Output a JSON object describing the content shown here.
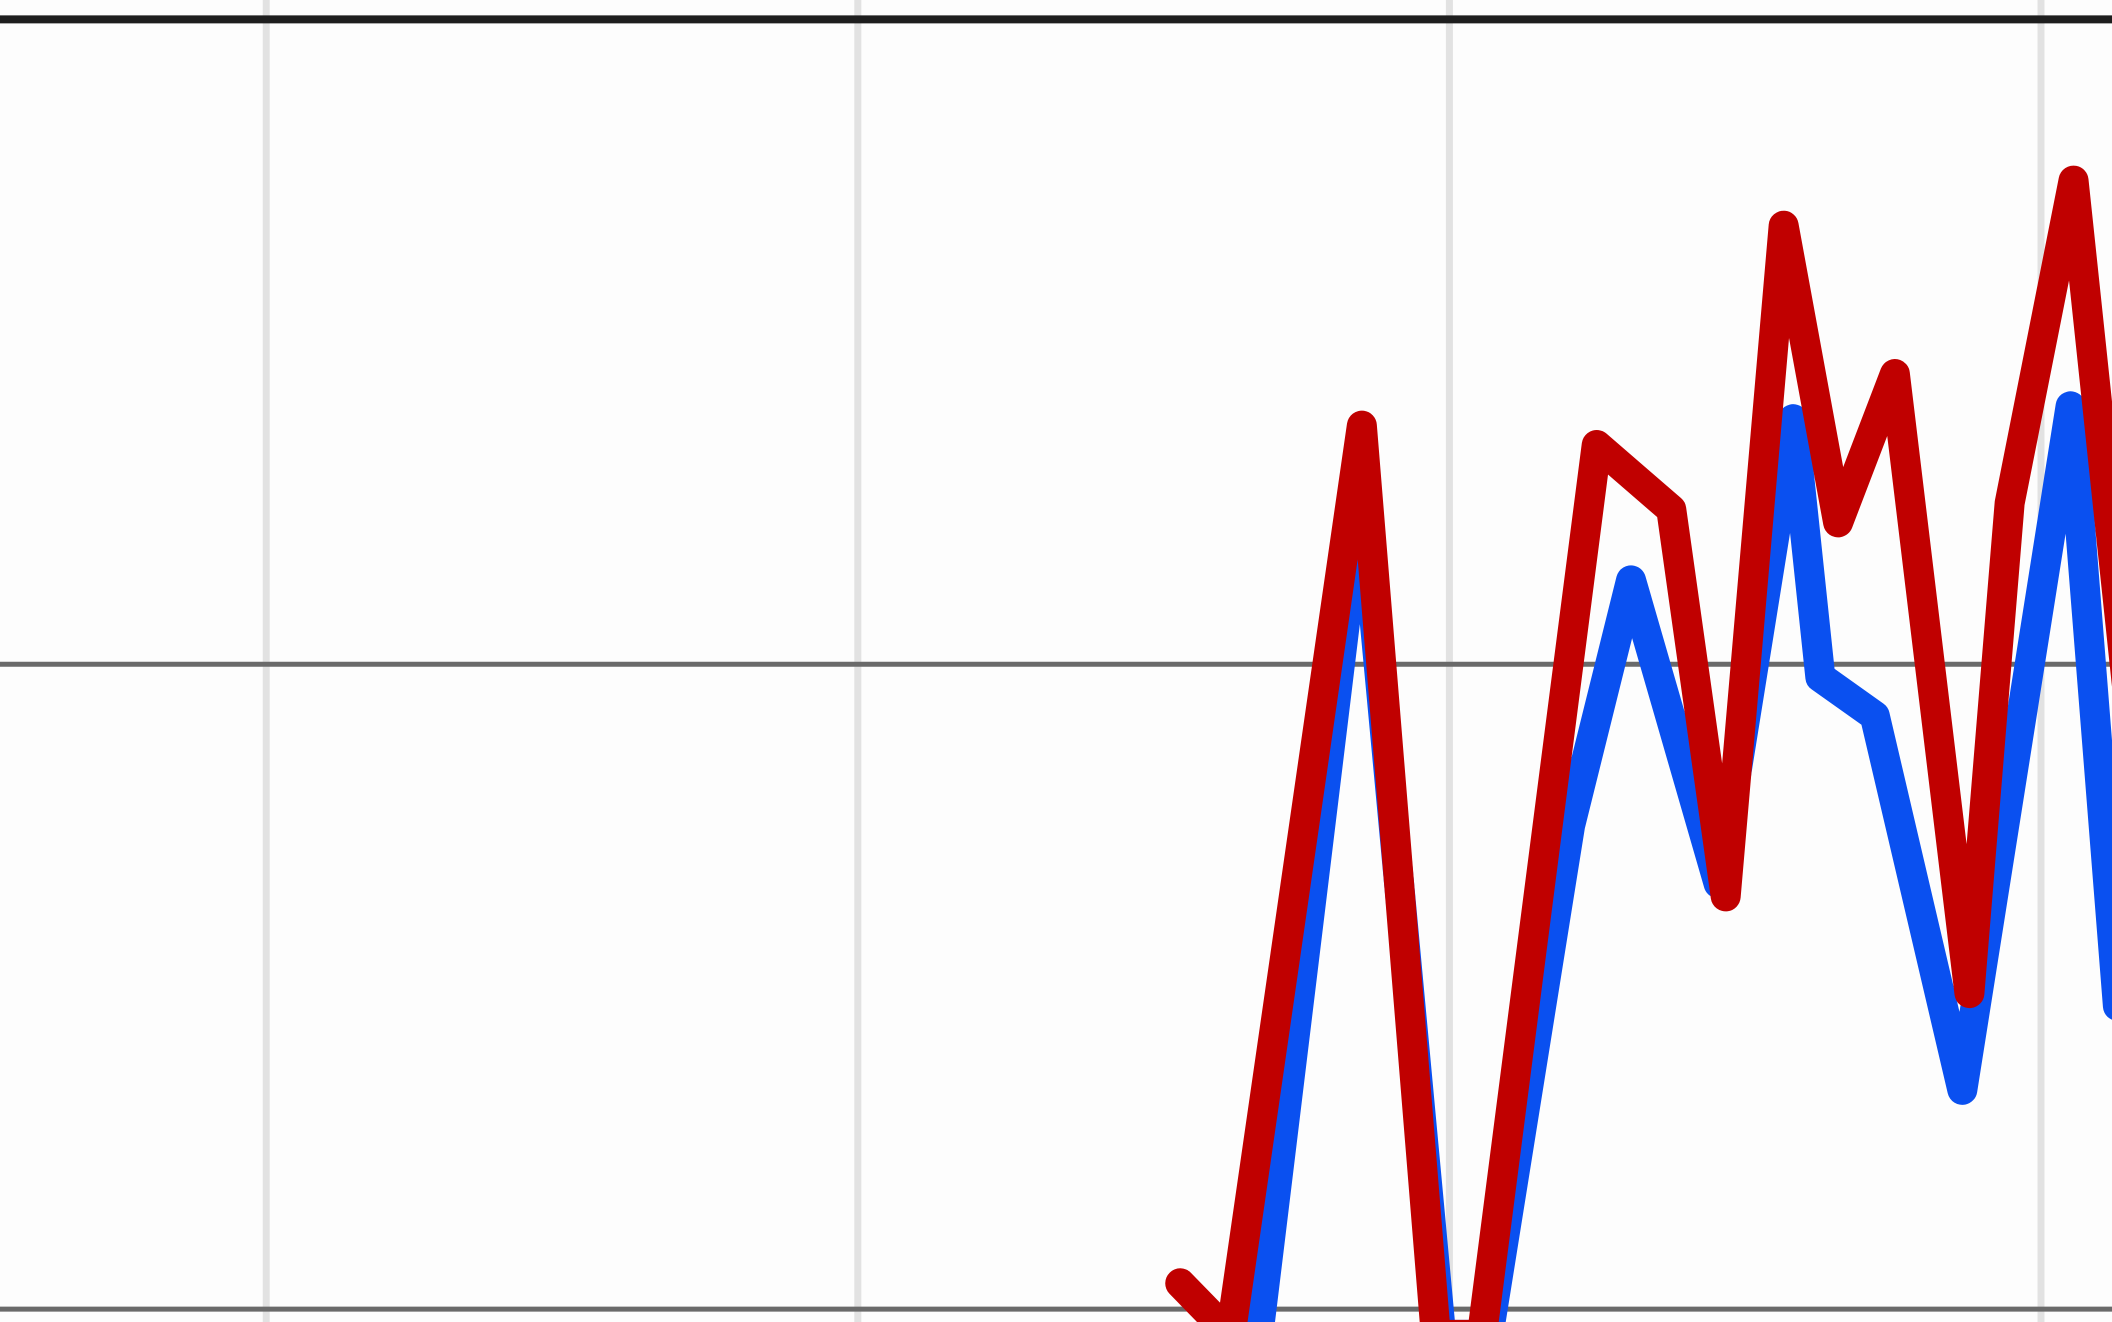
{
  "chart_data": {
    "type": "line",
    "xlim": [
      0.55,
      4.12
    ],
    "xticks": [
      1,
      2,
      3,
      4
    ],
    "ylim": [
      -0.02,
      2.03
    ],
    "yticks": [
      0,
      1,
      2
    ],
    "grid": true,
    "series": [
      {
        "color": "#0a50f0",
        "x": [
          2.677,
          2.852,
          2.986,
          3.066,
          3.204,
          3.307,
          3.455,
          3.581,
          3.627,
          3.719,
          3.867,
          4.05,
          4.13
        ],
        "values": [
          -0.04,
          1.28,
          -0.04,
          -0.04,
          0.75,
          1.13,
          0.66,
          1.38,
          0.98,
          0.92,
          0.34,
          1.4,
          0.47
        ]
      },
      {
        "color": "#c00000",
        "x": [
          2.545,
          2.63,
          2.852,
          2.977,
          3.055,
          3.249,
          3.375,
          3.467,
          3.565,
          3.657,
          3.753,
          3.879,
          3.947,
          4.055,
          4.153
        ],
        "values": [
          0.04,
          -0.04,
          1.37,
          -0.04,
          -0.04,
          1.34,
          1.24,
          0.64,
          1.68,
          1.22,
          1.45,
          0.49,
          1.25,
          1.75,
          0.9
        ]
      }
    ]
  }
}
